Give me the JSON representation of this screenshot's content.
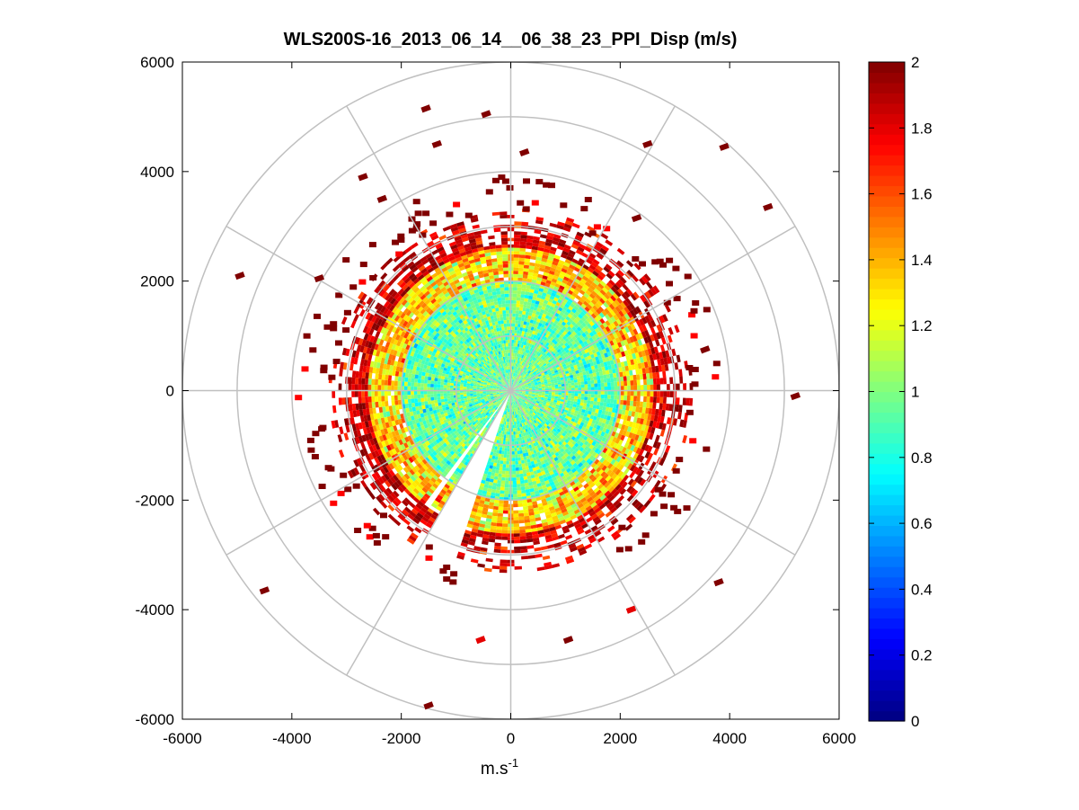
{
  "chart_data": {
    "type": "heatmap",
    "subtype": "polar-ppi",
    "title": "WLS200S-16_2013_06_14__06_38_23_PPI_Disp (m/s)",
    "xlabel": "m.s",
    "xlabel_sup": "-1",
    "ylabel": "",
    "xlim": [
      -6000,
      6000
    ],
    "ylim": [
      -6000,
      6000
    ],
    "xticks": [
      -6000,
      -4000,
      -2000,
      0,
      2000,
      4000,
      6000
    ],
    "yticks": [
      -6000,
      -4000,
      -2000,
      0,
      2000,
      4000,
      6000
    ],
    "xtick_labels": [
      "-6000",
      "-4000",
      "-2000",
      "0",
      "2000",
      "4000",
      "6000"
    ],
    "ytick_labels": [
      "-6000",
      "-4000",
      "-2000",
      "0",
      "2000",
      "4000",
      "6000"
    ],
    "polar_grid": {
      "rings": [
        1000,
        2000,
        3000,
        4000,
        5000,
        6000
      ],
      "spoke_step_deg": 30,
      "color": "#c0c0c0"
    },
    "colorbar": {
      "colormap": "jet",
      "clim": [
        0,
        2
      ],
      "ticks": [
        0,
        0.2,
        0.4,
        0.6,
        0.8,
        1,
        1.2,
        1.4,
        1.6,
        1.8,
        2
      ],
      "tick_labels": [
        "0",
        "0.2",
        "0.4",
        "0.6",
        "0.8",
        "1",
        "1.2",
        "1.4",
        "1.6",
        "1.8",
        "2"
      ]
    },
    "field": {
      "units": "m/s",
      "core_radius_range": [
        0,
        2000
      ],
      "core_value_mean": 0.95,
      "mid_radius_range": [
        2000,
        2600
      ],
      "mid_value_mean": 1.35,
      "edge_radius_range": [
        2600,
        3200
      ],
      "edge_value_mean": 1.85,
      "missing_sectors_deg": [
        [
          88,
          90
        ],
        [
          240,
          252
        ],
        [
          232,
          235
        ]
      ],
      "sparse_range": [
        3200,
        6000
      ],
      "outlier_value": 2
    },
    "outliers": [
      {
        "x": -1550,
        "y": 5150,
        "v": 2
      },
      {
        "x": -450,
        "y": 5050,
        "v": 2
      },
      {
        "x": 250,
        "y": 4350,
        "v": 2
      },
      {
        "x": -1350,
        "y": 4500,
        "v": 2
      },
      {
        "x": 2500,
        "y": 4500,
        "v": 2
      },
      {
        "x": 3900,
        "y": 4450,
        "v": 2
      },
      {
        "x": 4700,
        "y": 3350,
        "v": 2
      },
      {
        "x": -2700,
        "y": 3900,
        "v": 2
      },
      {
        "x": -4950,
        "y": 2100,
        "v": 2
      },
      {
        "x": 5200,
        "y": -100,
        "v": 2
      },
      {
        "x": 3800,
        "y": -3500,
        "v": 2
      },
      {
        "x": 2200,
        "y": -4000,
        "v": 1.8
      },
      {
        "x": 1050,
        "y": -4550,
        "v": 2
      },
      {
        "x": -550,
        "y": -4550,
        "v": 1.8
      },
      {
        "x": -4500,
        "y": -3650,
        "v": 2
      },
      {
        "x": -1500,
        "y": -5750,
        "v": 2
      },
      {
        "x": -2350,
        "y": 3500,
        "v": 2
      },
      {
        "x": -3500,
        "y": 2050,
        "v": 2
      },
      {
        "x": 2300,
        "y": 3150,
        "v": 2
      },
      {
        "x": 3550,
        "y": 750,
        "v": 2
      }
    ]
  }
}
